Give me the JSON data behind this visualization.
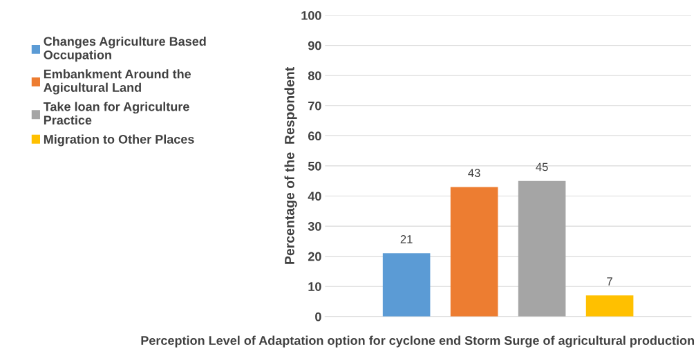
{
  "chart_data": {
    "type": "bar",
    "xlabel": "Perception Level of Adaptation option for cyclone end Storm Surge of agricultural production",
    "ylabel": "Percentage of the  Respondent",
    "categories": [
      null
    ],
    "series": [
      {
        "name": "Changes Agriculture Based Occupation",
        "color": "#5b9bd5",
        "values": [
          21
        ]
      },
      {
        "name": "Embankment Around the Agicultural Land",
        "color": "#ed7d31",
        "values": [
          43
        ]
      },
      {
        "name": "Take loan for Agriculture Practice",
        "color": "#a5a5a5",
        "values": [
          45
        ]
      },
      {
        "name": "Migration to Other Places",
        "color": "#ffc000",
        "values": [
          7
        ]
      }
    ],
    "ylim": [
      0,
      100
    ],
    "yticks": [
      0,
      10,
      20,
      30,
      40,
      50,
      60,
      70,
      80,
      90,
      100
    ],
    "grid": "y",
    "legend": "left",
    "data_labels": true
  }
}
